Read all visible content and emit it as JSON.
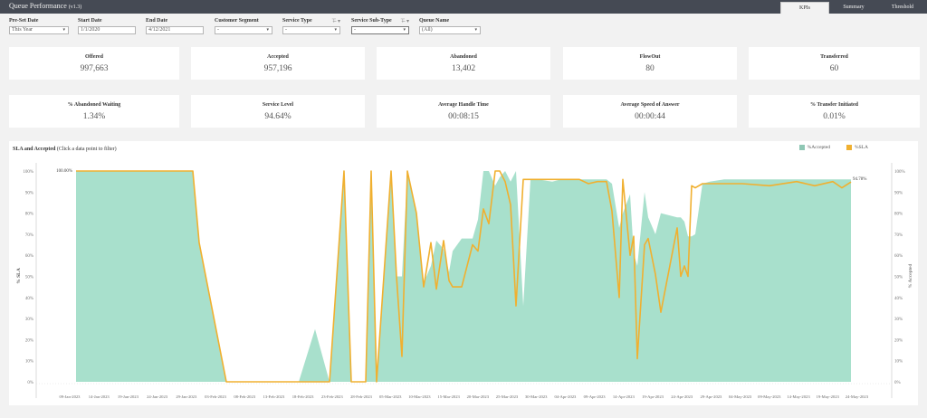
{
  "header": {
    "title": "Queue Performance",
    "version": "(v1.3)",
    "tabs": [
      {
        "label": "KPIs",
        "active": true
      },
      {
        "label": "Summary",
        "active": false
      },
      {
        "label": "Threshold",
        "active": false
      }
    ]
  },
  "filters": {
    "preset_date": {
      "label": "Pre-Set Date",
      "value": "This Year"
    },
    "start_date": {
      "label": "Start Date",
      "value": "1/1/2020"
    },
    "end_date": {
      "label": "End Date",
      "value": "4/12/2021"
    },
    "customer_segment": {
      "label": "Customer Segment",
      "value": "-"
    },
    "service_type": {
      "label": "Service Type",
      "value": "-",
      "filter_icon": "⊤̶ ▾"
    },
    "service_sub_type": {
      "label": "Service Sub-Type",
      "value": "-",
      "filter_icon": "⊤̶ ▾"
    },
    "queue_name": {
      "label": "Queue Name",
      "value": "(All)"
    }
  },
  "kpis_row1": [
    {
      "label": "Offered",
      "value": "997,663"
    },
    {
      "label": "Accepted",
      "value": "957,196"
    },
    {
      "label": "Abandoned",
      "value": "13,402"
    },
    {
      "label": "FlowOut",
      "value": "80"
    },
    {
      "label": "Transferred",
      "value": "60"
    }
  ],
  "kpis_row2": [
    {
      "label": "% Abandoned Waiting",
      "value": "1.34%"
    },
    {
      "label": "Service Level",
      "value": "94.64%"
    },
    {
      "label": "Average Handle Time",
      "value": "00:08:15"
    },
    {
      "label": "Average Speed of Answer",
      "value": "00:00:44"
    },
    {
      "label": "% Transfer Initiated",
      "value": "0.01%"
    }
  ],
  "chart": {
    "title": "SLA and Accepted",
    "subtitle": "(Click a data point to filter)",
    "legend": [
      {
        "label": "%Accepted",
        "color": "#a8e0cc"
      },
      {
        "label": "%SLA",
        "color": "#f0b030"
      }
    ],
    "start_label": "100.00%",
    "end_label": "94.78%",
    "y_left_title": "% SLA",
    "y_right_title": "% Accepted",
    "y_ticks": [
      "0%",
      "10%",
      "20%",
      "30%",
      "40%",
      "50%",
      "60%",
      "70%",
      "80%",
      "90%",
      "100%"
    ],
    "x_ticks": [
      "09-Jan-2023",
      "14-Jan-2023",
      "19-Jan-2023",
      "24-Jan-2023",
      "29-Jan-2023",
      "03-Feb-2023",
      "08-Feb-2023",
      "13-Feb-2023",
      "18-Feb-2023",
      "23-Feb-2023",
      "28-Feb-2023",
      "05-Mar-2023",
      "10-Mar-2023",
      "15-Mar-2023",
      "20-Mar-2023",
      "25-Mar-2023",
      "30-Mar-2023",
      "04-Apr-2023",
      "09-Apr-2023",
      "14-Apr-2023",
      "19-Apr-2023",
      "24-Apr-2023",
      "29-Apr-2023",
      "04-May-2023",
      "09-May-2023",
      "14-May-2023",
      "19-May-2023",
      "24-May-2023"
    ]
  },
  "chart_data": {
    "type": "area+line",
    "title": "SLA and Accepted (Click a data point to filter)",
    "xlabel": "",
    "ylabel": "% SLA",
    "ylabel_right": "% Accepted",
    "ylim": [
      0,
      100
    ],
    "grid": false,
    "legend_position": "top-right",
    "x": [
      84,
      213,
      220,
      250,
      330,
      348,
      364,
      380,
      388,
      404,
      410,
      416,
      432,
      438,
      444,
      450,
      460,
      468,
      476,
      482,
      490,
      496,
      500,
      510,
      522,
      528,
      534,
      540,
      547,
      552,
      558,
      564,
      570,
      578,
      586,
      594,
      610,
      620,
      630,
      640,
      650,
      660,
      670,
      676,
      684,
      688,
      696,
      700,
      704,
      712,
      716,
      724,
      730,
      748,
      752,
      756,
      760,
      764,
      768,
      776,
      784,
      800,
      820,
      850,
      880,
      900,
      920,
      930,
      940
    ],
    "series": [
      {
        "name": "%Accepted",
        "render": "area",
        "color": "#a8e0cc",
        "values": [
          100,
          100,
          66,
          0,
          0,
          25,
          0,
          100,
          0,
          0,
          100,
          0,
          100,
          50,
          50,
          100,
          80,
          47,
          55,
          67,
          63,
          52,
          62,
          68,
          68,
          77,
          100,
          100,
          93,
          97,
          100,
          95,
          100,
          36,
          96,
          96,
          95,
          96,
          96,
          96,
          96,
          96,
          96,
          94,
          73,
          80,
          89,
          61,
          55,
          90,
          78,
          70,
          80,
          78,
          78,
          76,
          69,
          69,
          70,
          94,
          95,
          96,
          96,
          96,
          96,
          96,
          96,
          96,
          96
        ]
      },
      {
        "name": "%SLA",
        "render": "line",
        "color": "#f0b030",
        "values": [
          100,
          100,
          66,
          0,
          0,
          0,
          0,
          100,
          0,
          0,
          100,
          0,
          100,
          50,
          12,
          100,
          80,
          45,
          66,
          44,
          67,
          48,
          45,
          45,
          65,
          62,
          82,
          75,
          100,
          100,
          95,
          84,
          36,
          96,
          96,
          96,
          96,
          96,
          96,
          96,
          94,
          95,
          95,
          81,
          40,
          96,
          60,
          69,
          11,
          65,
          68,
          51,
          33,
          73,
          50,
          55,
          50,
          93,
          92,
          94,
          94,
          94,
          94,
          93,
          95,
          93,
          95,
          92,
          94.78
        ]
      }
    ]
  }
}
